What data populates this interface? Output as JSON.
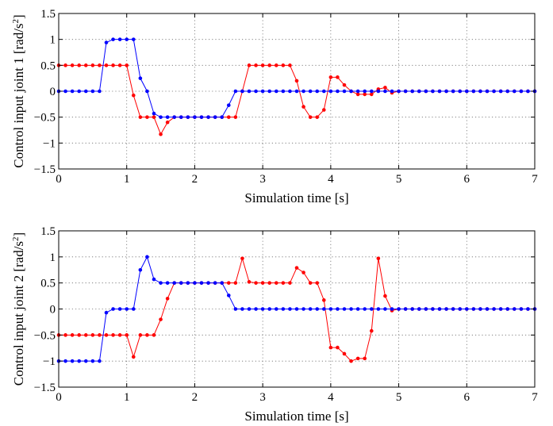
{
  "chart_data": [
    {
      "type": "line",
      "title": "",
      "xlabel": "Simulation time [s]",
      "ylabel_main": "Control input joint 1 [rad/s",
      "ylabel_sup": "2",
      "ylabel_tail": "]",
      "xlim": [
        0,
        7
      ],
      "ylim": [
        -1.5,
        1.5
      ],
      "xticks": [
        0,
        1,
        2,
        3,
        4,
        5,
        6,
        7
      ],
      "xtick_labels": [
        "0",
        "1",
        "2",
        "3",
        "4",
        "5",
        "6",
        "7"
      ],
      "yticks": [
        -1.5,
        -1,
        -0.5,
        0,
        0.5,
        1,
        1.5
      ],
      "ytick_labels": [
        "−1.5",
        "−1",
        "−0.5",
        "0",
        "0.5",
        "1",
        "1.5"
      ],
      "grid": true,
      "x": [
        0,
        0.1,
        0.2,
        0.3,
        0.4,
        0.5,
        0.6,
        0.7,
        0.8,
        0.9,
        1.0,
        1.1,
        1.2,
        1.3,
        1.4,
        1.5,
        1.6,
        1.7,
        1.8,
        1.9,
        2.0,
        2.1,
        2.2,
        2.3,
        2.4,
        2.5,
        2.6,
        2.7,
        2.8,
        2.9,
        3.0,
        3.1,
        3.2,
        3.3,
        3.4,
        3.5,
        3.6,
        3.7,
        3.8,
        3.9,
        4.0,
        4.1,
        4.2,
        4.3,
        4.4,
        4.5,
        4.6,
        4.7,
        4.8,
        4.9,
        5.0,
        5.1,
        5.2,
        5.3,
        5.4,
        5.5,
        5.6,
        5.7,
        5.8,
        5.9,
        6.0,
        6.1,
        6.2,
        6.3,
        6.4,
        6.5,
        6.6,
        6.7,
        6.8,
        6.9,
        7.0
      ],
      "series": [
        {
          "color": "#ff0000",
          "values": [
            0.5,
            0.5,
            0.5,
            0.5,
            0.5,
            0.5,
            0.5,
            0.5,
            0.5,
            0.5,
            0.5,
            -0.08,
            -0.5,
            -0.5,
            -0.5,
            -0.83,
            -0.6,
            -0.5,
            -0.5,
            -0.5,
            -0.5,
            -0.5,
            -0.5,
            -0.5,
            -0.5,
            -0.5,
            -0.5,
            0.0,
            0.5,
            0.5,
            0.5,
            0.5,
            0.5,
            0.5,
            0.5,
            0.2,
            -0.3,
            -0.5,
            -0.5,
            -0.36,
            0.27,
            0.27,
            0.12,
            0.0,
            -0.06,
            -0.06,
            -0.06,
            0.04,
            0.07,
            -0.03,
            0,
            0,
            0,
            0,
            0,
            0,
            0,
            0,
            0,
            0,
            0,
            0,
            0,
            0,
            0,
            0,
            0,
            0,
            0,
            0,
            0
          ]
        },
        {
          "color": "#0000ff",
          "values": [
            0,
            0,
            0,
            0,
            0,
            0,
            0,
            0.94,
            1.0,
            1.0,
            1.0,
            1.0,
            0.25,
            0.0,
            -0.43,
            -0.5,
            -0.5,
            -0.5,
            -0.5,
            -0.5,
            -0.5,
            -0.5,
            -0.5,
            -0.5,
            -0.5,
            -0.27,
            0.0,
            0.0,
            0,
            0,
            0,
            0,
            0,
            0,
            0,
            0,
            0,
            0,
            0,
            0,
            0,
            0,
            0,
            0,
            0,
            0,
            0,
            0,
            0,
            0,
            0,
            0,
            0,
            0,
            0,
            0,
            0,
            0,
            0,
            0,
            0,
            0,
            0,
            0,
            0,
            0,
            0,
            0,
            0,
            0,
            0
          ]
        }
      ]
    },
    {
      "type": "line",
      "title": "",
      "xlabel": "Simulation time [s]",
      "ylabel_main": "Control input joint 2 [rad/s",
      "ylabel_sup": "2",
      "ylabel_tail": "]",
      "xlim": [
        0,
        7
      ],
      "ylim": [
        -1.5,
        1.5
      ],
      "xticks": [
        0,
        1,
        2,
        3,
        4,
        5,
        6,
        7
      ],
      "xtick_labels": [
        "0",
        "1",
        "2",
        "3",
        "4",
        "5",
        "6",
        "7"
      ],
      "yticks": [
        -1.5,
        -1,
        -0.5,
        0,
        0.5,
        1,
        1.5
      ],
      "ytick_labels": [
        "−1.5",
        "−1",
        "−0.5",
        "0",
        "0.5",
        "1",
        "1.5"
      ],
      "grid": true,
      "x": [
        0,
        0.1,
        0.2,
        0.3,
        0.4,
        0.5,
        0.6,
        0.7,
        0.8,
        0.9,
        1.0,
        1.1,
        1.2,
        1.3,
        1.4,
        1.5,
        1.6,
        1.7,
        1.8,
        1.9,
        2.0,
        2.1,
        2.2,
        2.3,
        2.4,
        2.5,
        2.6,
        2.7,
        2.8,
        2.9,
        3.0,
        3.1,
        3.2,
        3.3,
        3.4,
        3.5,
        3.6,
        3.7,
        3.8,
        3.9,
        4.0,
        4.1,
        4.2,
        4.3,
        4.4,
        4.5,
        4.6,
        4.7,
        4.8,
        4.9,
        5.0,
        5.1,
        5.2,
        5.3,
        5.4,
        5.5,
        5.6,
        5.7,
        5.8,
        5.9,
        6.0,
        6.1,
        6.2,
        6.3,
        6.4,
        6.5,
        6.6,
        6.7,
        6.8,
        6.9,
        7.0
      ],
      "series": [
        {
          "color": "#ff0000",
          "values": [
            -0.5,
            -0.5,
            -0.5,
            -0.5,
            -0.5,
            -0.5,
            -0.5,
            -0.5,
            -0.5,
            -0.5,
            -0.5,
            -0.92,
            -0.5,
            -0.5,
            -0.5,
            -0.2,
            0.2,
            0.5,
            0.5,
            0.5,
            0.5,
            0.5,
            0.5,
            0.5,
            0.5,
            0.5,
            0.5,
            0.97,
            0.52,
            0.5,
            0.5,
            0.5,
            0.5,
            0.5,
            0.5,
            0.79,
            0.7,
            0.5,
            0.5,
            0.17,
            -0.74,
            -0.74,
            -0.86,
            -1.0,
            -0.95,
            -0.95,
            -0.42,
            0.97,
            0.25,
            -0.03,
            0,
            0,
            0,
            0,
            0,
            0,
            0,
            0,
            0,
            0,
            0,
            0,
            0,
            0,
            0,
            0,
            0,
            0,
            0,
            0,
            0
          ]
        },
        {
          "color": "#0000ff",
          "values": [
            -1.0,
            -1.0,
            -1.0,
            -1.0,
            -1.0,
            -1.0,
            -1.0,
            -0.07,
            0.0,
            0.0,
            0.0,
            0.0,
            0.75,
            1.0,
            0.57,
            0.5,
            0.5,
            0.5,
            0.5,
            0.5,
            0.5,
            0.5,
            0.5,
            0.5,
            0.5,
            0.26,
            0.0,
            0.0,
            0,
            0,
            0,
            0,
            0,
            0,
            0,
            0,
            0,
            0,
            0,
            0,
            0,
            0,
            0,
            0,
            0,
            0,
            0,
            0,
            0,
            0,
            0,
            0,
            0,
            0,
            0,
            0,
            0,
            0,
            0,
            0,
            0,
            0,
            0,
            0,
            0,
            0,
            0,
            0,
            0,
            0,
            0
          ]
        }
      ]
    }
  ]
}
